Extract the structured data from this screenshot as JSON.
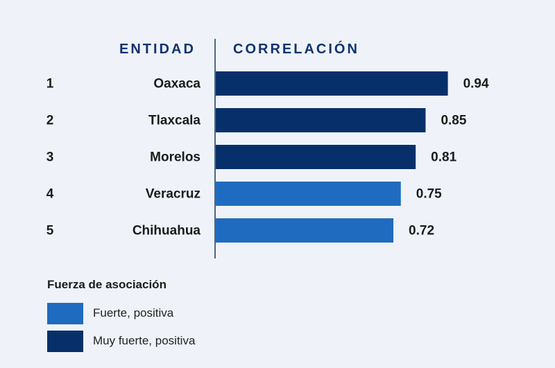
{
  "headers": {
    "entity": "ENTIDAD",
    "correlation": "CORRELACIÓN"
  },
  "chart_data": {
    "type": "bar",
    "orientation": "horizontal",
    "ranks": [
      "1",
      "2",
      "3",
      "4",
      "5"
    ],
    "categories": [
      "Oaxaca",
      "Tlaxcala",
      "Morelos",
      "Veracruz",
      "Chihuahua"
    ],
    "values": [
      0.94,
      0.85,
      0.81,
      0.75,
      0.72
    ],
    "value_labels": [
      "0.94",
      "0.85",
      "0.81",
      "0.75",
      "0.72"
    ],
    "strength": [
      "Muy fuerte, positiva",
      "Muy fuerte, positiva",
      "Muy fuerte, positiva",
      "Fuerte, positiva",
      "Fuerte, positiva"
    ],
    "xlabel": "CORRELACIÓN",
    "ylabel": "ENTIDAD",
    "xlim": [
      0,
      1
    ],
    "grid": false,
    "legend_position": "bottom-left"
  },
  "legend": {
    "title": "Fuerza de asociación",
    "items": [
      {
        "label": "Fuerte, positiva",
        "color": "#1f6bbf"
      },
      {
        "label": "Muy fuerte, positiva",
        "color": "#07306a"
      }
    ]
  },
  "colors": {
    "background": "#eff3f9",
    "header": "#0f3370",
    "axis": "#4e6685",
    "text": "#1b1b1b"
  }
}
